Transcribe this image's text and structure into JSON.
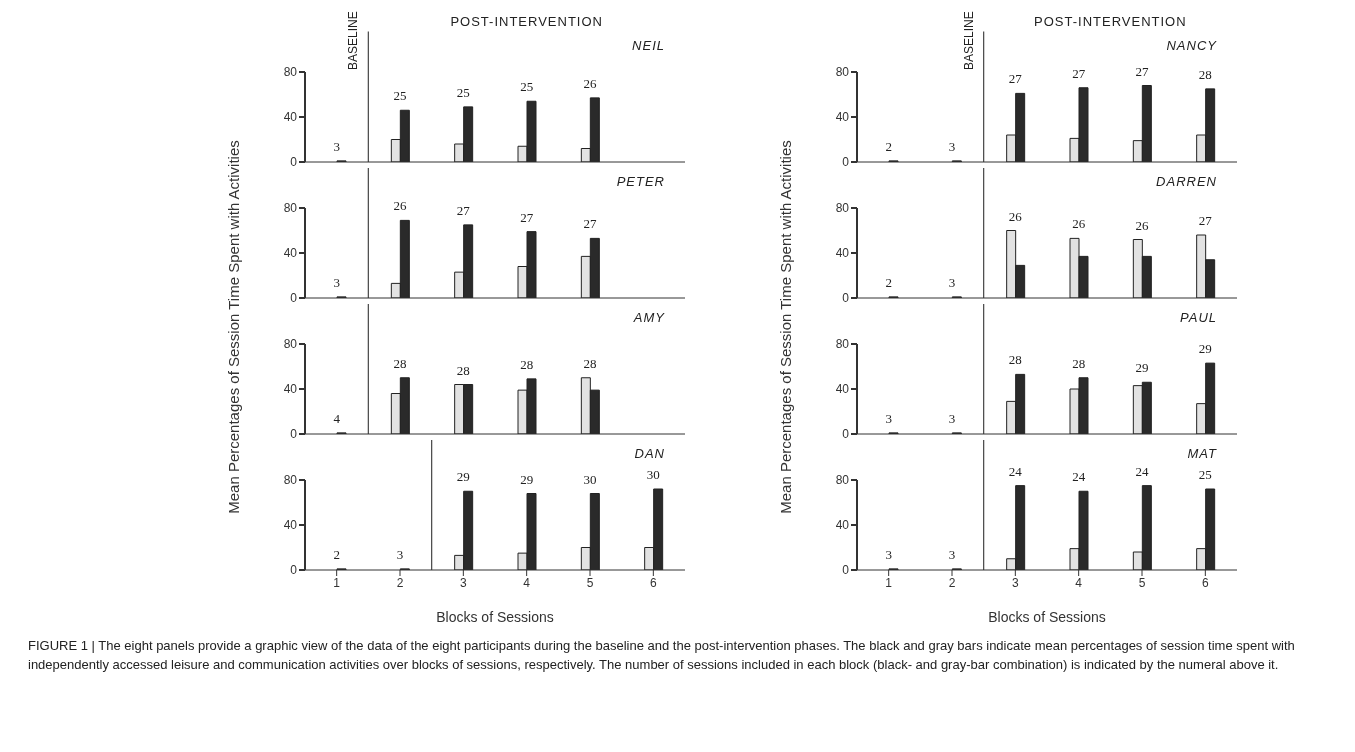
{
  "chart_data": [
    {
      "type": "bar",
      "title": "NEIL",
      "ylabel": "Mean Percentages of Session Time Spent with Activities",
      "x": [
        1,
        2,
        3,
        4,
        5
      ],
      "xlim": [
        0.5,
        6.5
      ],
      "ylim": [
        0,
        80
      ],
      "yticks": [
        0,
        40,
        80
      ],
      "tick_labels": "y",
      "series": [
        {
          "color": "#e2e2e2",
          "values": [
            0,
            20,
            16,
            14,
            12
          ]
        },
        {
          "color": "#2a2a2a",
          "values": [
            1,
            46,
            49,
            54,
            57
          ]
        }
      ],
      "ref_lines": [
        {
          "axis": "x",
          "value": 1.5
        }
      ],
      "annotations": [
        "BASELINE",
        "POST-INTERVENTION",
        {
          "text": "3",
          "x": 1,
          "y": 1
        },
        {
          "text": "25",
          "x": 2,
          "y": 46
        },
        {
          "text": "25",
          "x": 3,
          "y": 49
        },
        {
          "text": "25",
          "x": 4,
          "y": 54
        },
        {
          "text": "26",
          "x": 5,
          "y": 57
        }
      ]
    },
    {
      "type": "bar",
      "title": "NANCY",
      "ylabel": "Mean Percentages of Session Time Spent with Activities",
      "x": [
        1,
        2,
        3,
        4,
        5,
        6
      ],
      "xlim": [
        0.5,
        6.5
      ],
      "ylim": [
        0,
        80
      ],
      "yticks": [
        0,
        40,
        80
      ],
      "tick_labels": "y",
      "series": [
        {
          "color": "#e2e2e2",
          "values": [
            0,
            0,
            24,
            21,
            19,
            24
          ]
        },
        {
          "color": "#2a2a2a",
          "values": [
            1,
            1,
            61,
            66,
            68,
            65
          ]
        }
      ],
      "ref_lines": [
        {
          "axis": "x",
          "value": 2.5
        }
      ],
      "annotations": [
        "BASELINE",
        "POST-INTERVENTION",
        {
          "text": "2",
          "x": 1,
          "y": 1
        },
        {
          "text": "3",
          "x": 2,
          "y": 1
        },
        {
          "text": "27",
          "x": 3,
          "y": 61
        },
        {
          "text": "27",
          "x": 4,
          "y": 66
        },
        {
          "text": "27",
          "x": 5,
          "y": 68
        },
        {
          "text": "28",
          "x": 6,
          "y": 65
        }
      ]
    },
    {
      "type": "bar",
      "title": "PETER",
      "x": [
        1,
        2,
        3,
        4,
        5
      ],
      "xlim": [
        0.5,
        6.5
      ],
      "ylim": [
        0,
        80
      ],
      "yticks": [
        0,
        40,
        80
      ],
      "tick_labels": "y",
      "series": [
        {
          "color": "#e2e2e2",
          "values": [
            0,
            13,
            23,
            28,
            37
          ]
        },
        {
          "color": "#2a2a2a",
          "values": [
            1,
            69,
            65,
            59,
            53
          ]
        }
      ],
      "ref_lines": [
        {
          "axis": "x",
          "value": 1.5
        }
      ],
      "annotations": [
        {
          "text": "3",
          "x": 1,
          "y": 1
        },
        {
          "text": "26",
          "x": 2,
          "y": 69
        },
        {
          "text": "27",
          "x": 3,
          "y": 65
        },
        {
          "text": "27",
          "x": 4,
          "y": 59
        },
        {
          "text": "27",
          "x": 5,
          "y": 53
        }
      ]
    },
    {
      "type": "bar",
      "title": "DARREN",
      "x": [
        1,
        2,
        3,
        4,
        5,
        6
      ],
      "xlim": [
        0.5,
        6.5
      ],
      "ylim": [
        0,
        80
      ],
      "yticks": [
        0,
        40,
        80
      ],
      "tick_labels": "y",
      "series": [
        {
          "color": "#e2e2e2",
          "values": [
            0,
            0,
            60,
            53,
            52,
            56
          ]
        },
        {
          "color": "#2a2a2a",
          "values": [
            1,
            1,
            29,
            37,
            37,
            34
          ]
        }
      ],
      "ref_lines": [
        {
          "axis": "x",
          "value": 2.5
        }
      ],
      "annotations": [
        {
          "text": "2",
          "x": 1,
          "y": 1
        },
        {
          "text": "3",
          "x": 2,
          "y": 1
        },
        {
          "text": "26",
          "x": 3,
          "y": 60
        },
        {
          "text": "26",
          "x": 4,
          "y": 53
        },
        {
          "text": "26",
          "x": 5,
          "y": 52
        },
        {
          "text": "27",
          "x": 6,
          "y": 56
        }
      ]
    },
    {
      "type": "bar",
      "title": "AMY",
      "x": [
        1,
        2,
        3,
        4,
        5
      ],
      "xlim": [
        0.5,
        6.5
      ],
      "ylim": [
        0,
        80
      ],
      "yticks": [
        0,
        40,
        80
      ],
      "tick_labels": "y",
      "series": [
        {
          "color": "#e2e2e2",
          "values": [
            0,
            36,
            44,
            39,
            50
          ]
        },
        {
          "color": "#2a2a2a",
          "values": [
            1,
            50,
            44,
            49,
            39
          ]
        }
      ],
      "ref_lines": [
        {
          "axis": "x",
          "value": 1.5
        }
      ],
      "annotations": [
        {
          "text": "4",
          "x": 1,
          "y": 1
        },
        {
          "text": "28",
          "x": 2,
          "y": 50
        },
        {
          "text": "28",
          "x": 3,
          "y": 44
        },
        {
          "text": "28",
          "x": 4,
          "y": 49
        },
        {
          "text": "28",
          "x": 5,
          "y": 50
        }
      ]
    },
    {
      "type": "bar",
      "title": "PAUL",
      "x": [
        1,
        2,
        3,
        4,
        5,
        6
      ],
      "xlim": [
        0.5,
        6.5
      ],
      "ylim": [
        0,
        80
      ],
      "yticks": [
        0,
        40,
        80
      ],
      "tick_labels": "y",
      "series": [
        {
          "color": "#e2e2e2",
          "values": [
            0,
            0,
            29,
            40,
            43,
            27
          ]
        },
        {
          "color": "#2a2a2a",
          "values": [
            1,
            1,
            53,
            50,
            46,
            63
          ]
        }
      ],
      "ref_lines": [
        {
          "axis": "x",
          "value": 2.5
        }
      ],
      "annotations": [
        {
          "text": "3",
          "x": 1,
          "y": 1
        },
        {
          "text": "3",
          "x": 2,
          "y": 1
        },
        {
          "text": "28",
          "x": 3,
          "y": 53
        },
        {
          "text": "28",
          "x": 4,
          "y": 50
        },
        {
          "text": "29",
          "x": 5,
          "y": 46
        },
        {
          "text": "29",
          "x": 6,
          "y": 63
        }
      ]
    },
    {
      "type": "bar",
      "title": "DAN",
      "xlabel": "Blocks of Sessions",
      "x": [
        1,
        2,
        3,
        4,
        5,
        6
      ],
      "xlim": [
        0.5,
        6.5
      ],
      "xticks": [
        1,
        2,
        3,
        4,
        5,
        6
      ],
      "ylim": [
        0,
        80
      ],
      "yticks": [
        0,
        40,
        80
      ],
      "series": [
        {
          "color": "#e2e2e2",
          "values": [
            0,
            0,
            13,
            15,
            20,
            20
          ]
        },
        {
          "color": "#2a2a2a",
          "values": [
            1,
            1,
            70,
            68,
            68,
            72
          ]
        }
      ],
      "ref_lines": [
        {
          "axis": "x",
          "value": 2.5
        }
      ],
      "annotations": [
        {
          "text": "2",
          "x": 1,
          "y": 1
        },
        {
          "text": "3",
          "x": 2,
          "y": 1
        },
        {
          "text": "29",
          "x": 3,
          "y": 70
        },
        {
          "text": "29",
          "x": 4,
          "y": 68
        },
        {
          "text": "30",
          "x": 5,
          "y": 68
        },
        {
          "text": "30",
          "x": 6,
          "y": 72
        }
      ]
    },
    {
      "type": "bar",
      "title": "MAT",
      "xlabel": "Blocks of Sessions",
      "x": [
        1,
        2,
        3,
        4,
        5,
        6
      ],
      "xlim": [
        0.5,
        6.5
      ],
      "xticks": [
        1,
        2,
        3,
        4,
        5,
        6
      ],
      "ylim": [
        0,
        80
      ],
      "yticks": [
        0,
        40,
        80
      ],
      "series": [
        {
          "color": "#e2e2e2",
          "values": [
            0,
            0,
            10,
            19,
            16,
            19
          ]
        },
        {
          "color": "#2a2a2a",
          "values": [
            1,
            1,
            75,
            70,
            75,
            72
          ]
        }
      ],
      "ref_lines": [
        {
          "axis": "x",
          "value": 2.5
        }
      ],
      "annotations": [
        {
          "text": "3",
          "x": 1,
          "y": 1
        },
        {
          "text": "3",
          "x": 2,
          "y": 1
        },
        {
          "text": "24",
          "x": 3,
          "y": 75
        },
        {
          "text": "24",
          "x": 4,
          "y": 70
        },
        {
          "text": "24",
          "x": 5,
          "y": 75
        },
        {
          "text": "25",
          "x": 6,
          "y": 72
        }
      ]
    },
    {
      "type": "other",
      "annotations": [
        "FIGURE 1 | The eight panels provide a graphic view of the data of the eight participants during the baseline and the post-intervention phases. The black and gray bars indicate mean percentages of session time spent with independently accessed leisure and communication activities over blocks of sessions, respectively. The number of sessions included in each block (black- and gray-bar combination) is indicated by the numeral above it."
      ]
    }
  ]
}
